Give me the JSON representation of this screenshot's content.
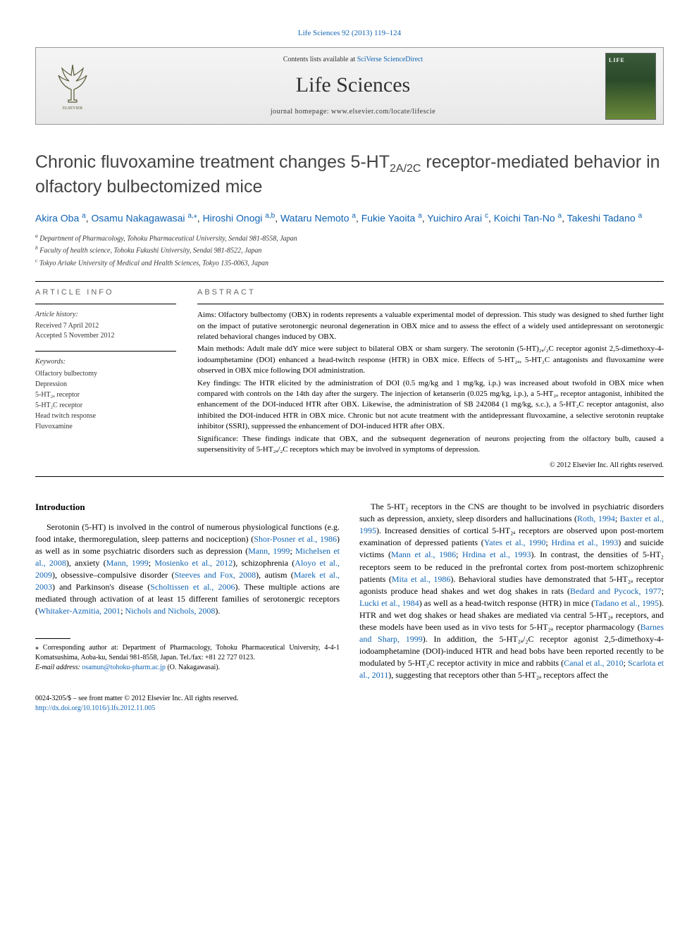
{
  "top_citation": "Life Sciences 92 (2013) 119–124",
  "banner": {
    "contents_prefix": "Contents lists available at ",
    "contents_link": "SciVerse ScienceDirect",
    "journal": "Life Sciences",
    "homepage": "journal homepage: www.elsevier.com/locate/lifescie"
  },
  "title_part1": "Chronic fluvoxamine treatment changes 5-HT",
  "title_sub": "2A/2C",
  "title_part2": " receptor-mediated behavior in olfactory bulbectomized mice",
  "authors": [
    {
      "name": "Akira Oba",
      "sup": "a"
    },
    {
      "name": "Osamu Nakagawasai",
      "sup": "a,⁎"
    },
    {
      "name": "Hiroshi Onogi",
      "sup": "a,b"
    },
    {
      "name": "Wataru Nemoto",
      "sup": "a"
    },
    {
      "name": "Fukie Yaoita",
      "sup": "a"
    },
    {
      "name": "Yuichiro Arai",
      "sup": "c"
    },
    {
      "name": "Koichi Tan-No",
      "sup": "a"
    },
    {
      "name": "Takeshi Tadano",
      "sup": "a"
    }
  ],
  "affiliations": [
    {
      "key": "a",
      "text": "Department of Pharmacology, Tohoku Pharmaceutical University, Sendai 981-8558, Japan"
    },
    {
      "key": "b",
      "text": "Faculty of health science, Tohoku Fukushi University, Sendai 981-8522, Japan"
    },
    {
      "key": "c",
      "text": "Tokyo Ariake University of Medical and Health Sciences, Tokyo 135-0063, Japan"
    }
  ],
  "article_info": {
    "label": "ARTICLE INFO",
    "history_title": "Article history:",
    "history": [
      "Received 7 April 2012",
      "Accepted 5 November 2012"
    ],
    "keywords_title": "Keywords:",
    "keywords": [
      "Olfactory bulbectomy",
      "Depression",
      "5-HT₂ₐ receptor",
      "5-HT₂C receptor",
      "Head twitch response",
      "Fluvoxamine"
    ]
  },
  "abstract": {
    "label": "ABSTRACT",
    "aims": "Aims: Olfactory bulbectomy (OBX) in rodents represents a valuable experimental model of depression. This study was designed to shed further light on the impact of putative serotonergic neuronal degeneration in OBX mice and to assess the effect of a widely used antidepressant on serotonergic related behavioral changes induced by OBX.",
    "methods": "Main methods: Adult male ddY mice were subject to bilateral OBX or sham surgery. The serotonin (5-HT)₂ₐ/₂C receptor agonist 2,5-dimethoxy-4-iodoamphetamine (DOI) enhanced a head-twitch response (HTR) in OBX mice. Effects of 5-HT₂ₐ, 5-HT₂C antagonists and fluvoxamine were observed in OBX mice following DOI administration.",
    "findings": "Key findings: The HTR elicited by the administration of DOI (0.5 mg/kg and 1 mg/kg, i.p.) was increased about twofold in OBX mice when compared with controls on the 14th day after the surgery. The injection of ketanserin (0.025 mg/kg, i.p.), a 5-HT₂ₐ receptor antagonist, inhibited the enhancement of the DOI-induced HTR after OBX. Likewise, the administration of SB 242084 (1 mg/kg, s.c.), a 5-HT₂C receptor antagonist, also inhibited the DOI-induced HTR in OBX mice. Chronic but not acute treatment with the antidepressant fluvoxamine, a selective serotonin reuptake inhibitor (SSRI), suppressed the enhancement of DOI-induced HTR after OBX.",
    "significance": "Significance: These findings indicate that OBX, and the subsequent degeneration of neurons projecting from the olfactory bulb, caused a supersensitivity of 5-HT₂ₐ/₂C receptors which may be involved in symptoms of depression.",
    "copyright": "© 2012 Elsevier Inc. All rights reserved."
  },
  "introduction": {
    "heading": "Introduction",
    "left_para": "Serotonin (5-HT) is involved in the control of numerous physiological functions (e.g. food intake, thermoregulation, sleep patterns and nociception) (Shor-Posner et al., 1986) as well as in some psychiatric disorders such as depression (Mann, 1999; Michelsen et al., 2008), anxiety (Mann, 1999; Mosienko et al., 2012), schizophrenia (Aloyo et al., 2009), obsessive–compulsive disorder (Steeves and Fox, 2008), autism (Marek et al., 2003) and Parkinson's disease (Scholtissen et al., 2006). These multiple actions are mediated through activation of at least 15 different families of serotonergic receptors (Whitaker-Azmitia, 2001; Nichols and Nichols, 2008).",
    "right_para": "The 5-HT₂ receptors in the CNS are thought to be involved in psychiatric disorders such as depression, anxiety, sleep disorders and hallucinations (Roth, 1994; Baxter et al., 1995). Increased densities of cortical 5-HT₂ₐ receptors are observed upon post-mortem examination of depressed patients (Yates et al., 1990; Hrdina et al., 1993) and suicide victims (Mann et al., 1986; Hrdina et al., 1993). In contrast, the densities of 5-HT₂ receptors seem to be reduced in the prefrontal cortex from post-mortem schizophrenic patients (Mita et al., 1986). Behavioral studies have demonstrated that 5-HT₂ₐ receptor agonists produce head shakes and wet dog shakes in rats (Bedard and Pycock, 1977; Lucki et al., 1984) as well as a head-twitch response (HTR) in mice (Tadano et al., 1995). HTR and wet dog shakes or head shakes are mediated via central 5-HT₂ₐ receptors, and these models have been used as in vivo tests for 5-HT₂ₐ receptor pharmacology (Barnes and Sharp, 1999). In addition, the 5-HT₂ₐ/₂C receptor agonist 2,5-dimethoxy-4-iodoamphetamine (DOI)-induced HTR and head bobs have been reported recently to be modulated by 5-HT₂C receptor activity in mice and rabbits (Canal et al., 2010; Scarlota et al., 2011), suggesting that receptors other than 5-HT₂ₐ receptors affect the"
  },
  "footnotes": {
    "corresponding": "⁎ Corresponding author at: Department of Pharmacology, Tohoku Pharmaceutical University, 4-4-1 Komatsushima, Aoba-ku, Sendai 981-8558, Japan. Tel./fax: +81 22 727 0123.",
    "email_label": "E-mail address: ",
    "email": "osamun@tohoku-pharm.ac.jp",
    "email_who": " (O. Nakagawasai)."
  },
  "bottom": {
    "left1": "0024-3205/$ – see front matter © 2012 Elsevier Inc. All rights reserved.",
    "doi": "http://dx.doi.org/10.1016/j.lfs.2012.11.005"
  },
  "colors": {
    "link": "#1164b3",
    "text": "#000000",
    "heading_gray": "#444444"
  }
}
